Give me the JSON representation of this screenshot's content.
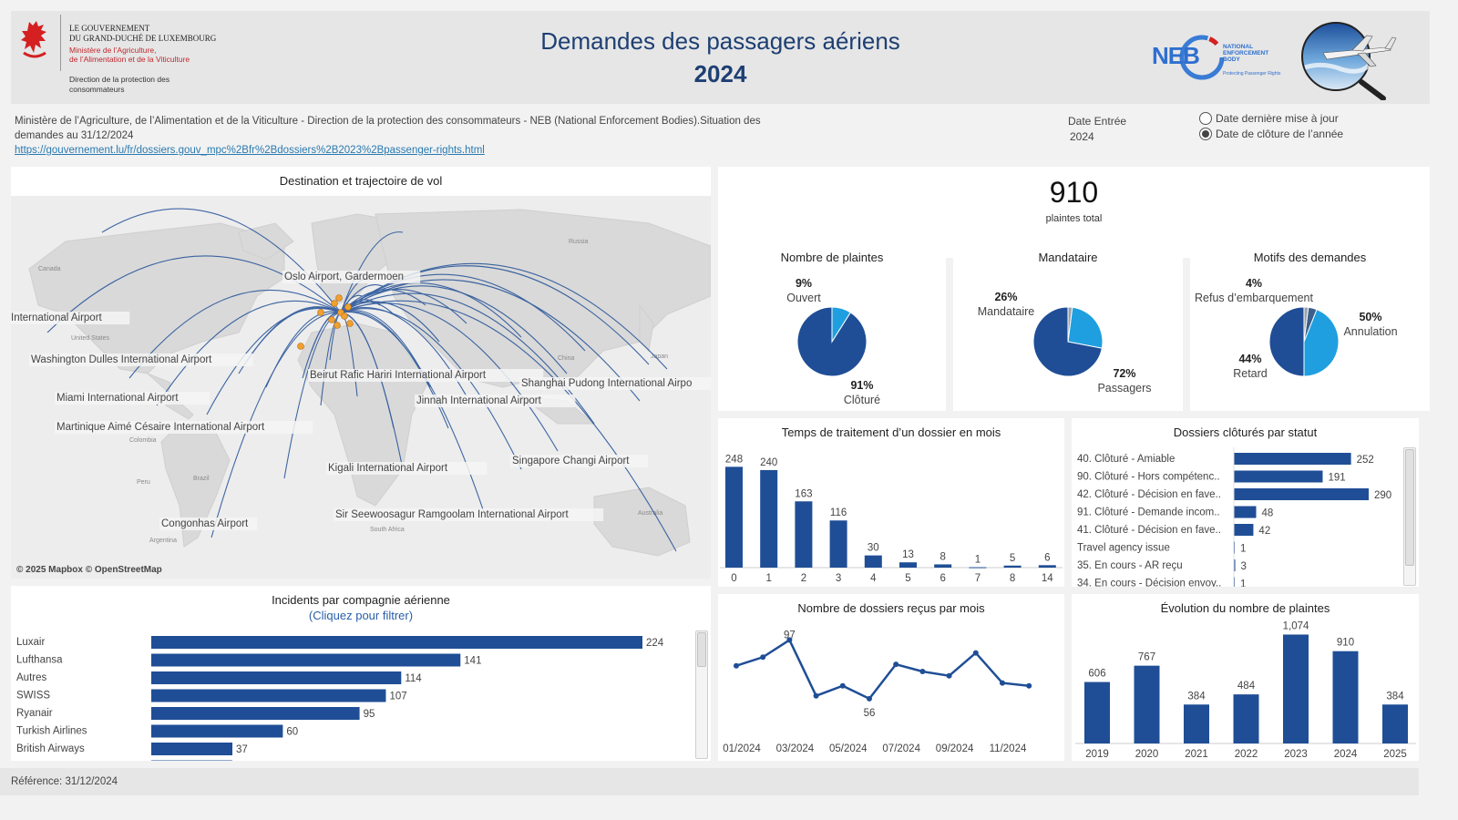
{
  "header": {
    "gov_line1": "LE GOUVERNEMENT",
    "gov_line2": "DU GRAND-DUCHÉ DE LUXEMBOURG",
    "ministry_line1": "Ministère de l’Agriculture,",
    "ministry_line2": "de l’Alimentation et de la Viticulture",
    "direction_line1": "Direction de la protection des",
    "direction_line2": "consommateurs",
    "title": "Demandes des passagers aériens",
    "year": "2024",
    "neb_text": "NEB",
    "neb_sub1": "NATIONAL",
    "neb_sub2": "ENFORCEMENT",
    "neb_sub3": "BODY",
    "neb_tagline": "Protecting Passenger Rights"
  },
  "info": {
    "text_line1": "Ministère de l’Agriculture, de l’Alimentation et de la Viticulture - Direction de la protection des consommateurs - NEB (National Enforcement Bodies).Situation des",
    "text_line2": "demandes au 31/12/2024",
    "link": "https://gouvernement.lu/fr/dossiers.gouv_mpc%2Bfr%2Bdossiers%2B2023%2Bpassenger-rights.html"
  },
  "filters": {
    "date_label": "Date Entrée",
    "date_value": "2024",
    "options": [
      "Date dernière mise à jour",
      "Date de clôture de l’année"
    ],
    "selected": 1
  },
  "map": {
    "title": "Destination et trajectoire de vol",
    "attribution": "© 2025 Mapbox © OpenStreetMap",
    "regions": [
      "Canada",
      "United States",
      "Russia",
      "China",
      "Japan",
      "Colombia",
      "Peru",
      "Brazil",
      "Argentina",
      "South Africa",
      "Australia"
    ],
    "airports": [
      "Oslo Airport, Gardermoen",
      "International Airport",
      "Washington Dulles International Airport",
      "Beirut Rafic Hariri International Airport",
      "Shanghai Pudong International Airpo",
      "Miami International Airport",
      "Jinnah International Airport",
      "Martinique Aimé Césaire International Airport",
      "Singapore Changi Airport",
      "Kigali International Airport",
      "Congonhas Airport",
      "Sir Seewoosagur Ramgoolam International Airport"
    ]
  },
  "kpi": {
    "total": "910",
    "total_label": "plaintes total"
  },
  "pies": [
    {
      "title": "Nombre de plaintes",
      "slices": [
        {
          "label": "Clôturé",
          "pct": "91%",
          "value": 0.91,
          "color": "#1f4e96"
        },
        {
          "label": "Ouvert",
          "pct": "9%",
          "value": 0.09,
          "color": "#1f9fe0"
        }
      ]
    },
    {
      "title": "Mandataire",
      "slices": [
        {
          "label": "Passagers",
          "pct": "72%",
          "value": 0.72,
          "color": "#1f4e96"
        },
        {
          "label": "Mandataire",
          "pct": "26%",
          "value": 0.26,
          "color": "#1f9fe0"
        },
        {
          "label": "",
          "pct": "",
          "value": 0.02,
          "color": "#9aa3ad"
        }
      ]
    },
    {
      "title": "Motifs des demandes",
      "slices": [
        {
          "label": "Annulation",
          "pct": "50%",
          "value": 0.5,
          "color": "#1f4e96"
        },
        {
          "label": "Retard",
          "pct": "44%",
          "value": 0.44,
          "color": "#1f9fe0"
        },
        {
          "label": "Refus d’embarquement",
          "pct": "4%",
          "value": 0.04,
          "color": "#3c5f8c"
        },
        {
          "label": "",
          "pct": "",
          "value": 0.02,
          "color": "#9aa3ad"
        }
      ]
    }
  ],
  "processing": {
    "title": "Temps de traitement d’un dossier en mois",
    "categories": [
      "0",
      "1",
      "2",
      "3",
      "4",
      "5",
      "6",
      "7",
      "8",
      "14"
    ],
    "values": [
      248,
      240,
      163,
      116,
      30,
      13,
      8,
      1,
      5,
      6
    ]
  },
  "status": {
    "title": "Dossiers clôturés par statut",
    "rows": [
      {
        "label": "40. Clôturé - Amiable",
        "value": 252
      },
      {
        "label": "90. Clôturé - Hors compétenc..",
        "value": 191
      },
      {
        "label": "42. Clôturé - Décision en fave..",
        "value": 290
      },
      {
        "label": "91. Clôturé - Demande incom..",
        "value": 48
      },
      {
        "label": "41. Clôturé - Décision en fave..",
        "value": 42
      },
      {
        "label": "Travel agency issue",
        "value": 1
      },
      {
        "label": "35. En cours - AR reçu",
        "value": 3
      },
      {
        "label": "34. En cours - Décision envoy..",
        "value": 1
      }
    ]
  },
  "airlines": {
    "title": "Incidents par compagnie aérienne",
    "subtitle": "(Cliquez pour filtrer)",
    "rows": [
      {
        "label": "Luxair",
        "value": 224
      },
      {
        "label": "Lufthansa",
        "value": 141
      },
      {
        "label": "Autres",
        "value": 114
      },
      {
        "label": "SWISS",
        "value": 107
      },
      {
        "label": "Ryanair",
        "value": 95
      },
      {
        "label": "Turkish Airlines",
        "value": 60
      },
      {
        "label": "British Airways",
        "value": 37
      }
    ]
  },
  "monthly": {
    "title": "Nombre de dossiers reçus par mois",
    "values": [
      79,
      85,
      97,
      58,
      65,
      56,
      80,
      75,
      72,
      88,
      67,
      65
    ],
    "labels": {
      "2": "97",
      "5": "56"
    },
    "ticks": [
      "01/2024",
      "03/2024",
      "05/2024",
      "07/2024",
      "09/2024",
      "11/2024"
    ]
  },
  "evolution": {
    "title": "Évolution du nombre de plaintes",
    "categories": [
      "2019",
      "2020",
      "2021",
      "2022",
      "2023",
      "2024",
      "2025"
    ],
    "values": [
      606,
      767,
      384,
      484,
      1074,
      910,
      384
    ],
    "labels": [
      "606",
      "767",
      "384",
      "484",
      "1,074",
      "910",
      "384"
    ]
  },
  "footer": {
    "reference": "Référence: 31/12/2024"
  },
  "colors": {
    "bar": "#1f4e96",
    "accent": "#1f9fe0",
    "grey": "#9aa3ad",
    "route": "#1f4e96",
    "airport": "#f0a030"
  }
}
